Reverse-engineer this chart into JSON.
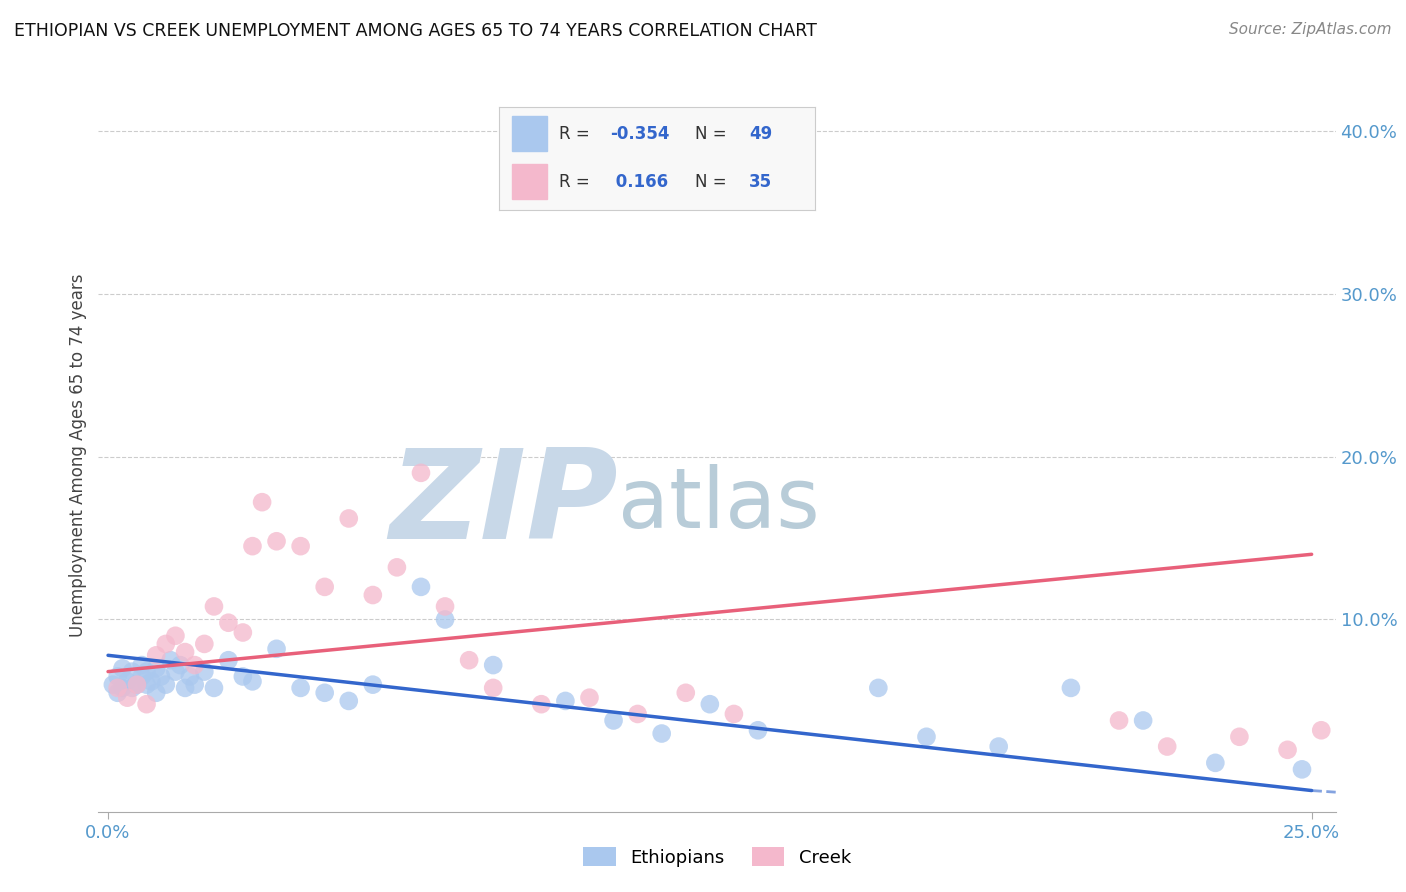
{
  "title": "ETHIOPIAN VS CREEK UNEMPLOYMENT AMONG AGES 65 TO 74 YEARS CORRELATION CHART",
  "source": "Source: ZipAtlas.com",
  "ylabel": "Unemployment Among Ages 65 to 74 years",
  "ytick_labels": [
    "40.0%",
    "30.0%",
    "20.0%",
    "10.0%"
  ],
  "ytick_values": [
    0.4,
    0.3,
    0.2,
    0.1
  ],
  "xlim": [
    -0.002,
    0.255
  ],
  "ylim": [
    -0.018,
    0.42
  ],
  "background_color": "#ffffff",
  "grid_color": "#cccccc",
  "watermark_zip": "ZIP",
  "watermark_atlas": "atlas",
  "watermark_color_zip": "#c8d8e8",
  "watermark_color_atlas": "#b8ccd8",
  "ethiopian_color": "#aac8ee",
  "creek_color": "#f4b8cc",
  "ethiopian_line_color": "#3366cc",
  "creek_line_color": "#e8607a",
  "ethiopian_line_start_y": 0.078,
  "ethiopian_line_end_y": -0.005,
  "creek_line_start_y": 0.068,
  "creek_line_end_y": 0.14,
  "ethiopian_scatter_x": [
    0.001,
    0.002,
    0.002,
    0.003,
    0.003,
    0.004,
    0.005,
    0.005,
    0.006,
    0.007,
    0.007,
    0.008,
    0.008,
    0.009,
    0.01,
    0.01,
    0.011,
    0.012,
    0.013,
    0.014,
    0.015,
    0.016,
    0.017,
    0.018,
    0.02,
    0.022,
    0.025,
    0.028,
    0.03,
    0.035,
    0.04,
    0.045,
    0.05,
    0.055,
    0.065,
    0.07,
    0.08,
    0.095,
    0.105,
    0.115,
    0.125,
    0.135,
    0.16,
    0.17,
    0.185,
    0.2,
    0.215,
    0.23,
    0.248
  ],
  "ethiopian_scatter_y": [
    0.06,
    0.055,
    0.065,
    0.058,
    0.07,
    0.062,
    0.058,
    0.068,
    0.06,
    0.065,
    0.072,
    0.06,
    0.068,
    0.062,
    0.07,
    0.055,
    0.065,
    0.06,
    0.075,
    0.068,
    0.072,
    0.058,
    0.065,
    0.06,
    0.068,
    0.058,
    0.075,
    0.065,
    0.062,
    0.082,
    0.058,
    0.055,
    0.05,
    0.06,
    0.12,
    0.1,
    0.072,
    0.05,
    0.038,
    0.03,
    0.048,
    0.032,
    0.058,
    0.028,
    0.022,
    0.058,
    0.038,
    0.012,
    0.008
  ],
  "creek_scatter_x": [
    0.002,
    0.004,
    0.006,
    0.008,
    0.01,
    0.012,
    0.014,
    0.016,
    0.018,
    0.02,
    0.022,
    0.025,
    0.028,
    0.03,
    0.032,
    0.035,
    0.04,
    0.045,
    0.05,
    0.055,
    0.06,
    0.065,
    0.07,
    0.075,
    0.08,
    0.09,
    0.1,
    0.11,
    0.12,
    0.13,
    0.21,
    0.22,
    0.235,
    0.245,
    0.252
  ],
  "creek_scatter_y": [
    0.058,
    0.052,
    0.06,
    0.048,
    0.078,
    0.085,
    0.09,
    0.08,
    0.072,
    0.085,
    0.108,
    0.098,
    0.092,
    0.145,
    0.172,
    0.148,
    0.145,
    0.12,
    0.162,
    0.115,
    0.132,
    0.19,
    0.108,
    0.075,
    0.058,
    0.048,
    0.052,
    0.042,
    0.055,
    0.042,
    0.038,
    0.022,
    0.028,
    0.02,
    0.032
  ]
}
